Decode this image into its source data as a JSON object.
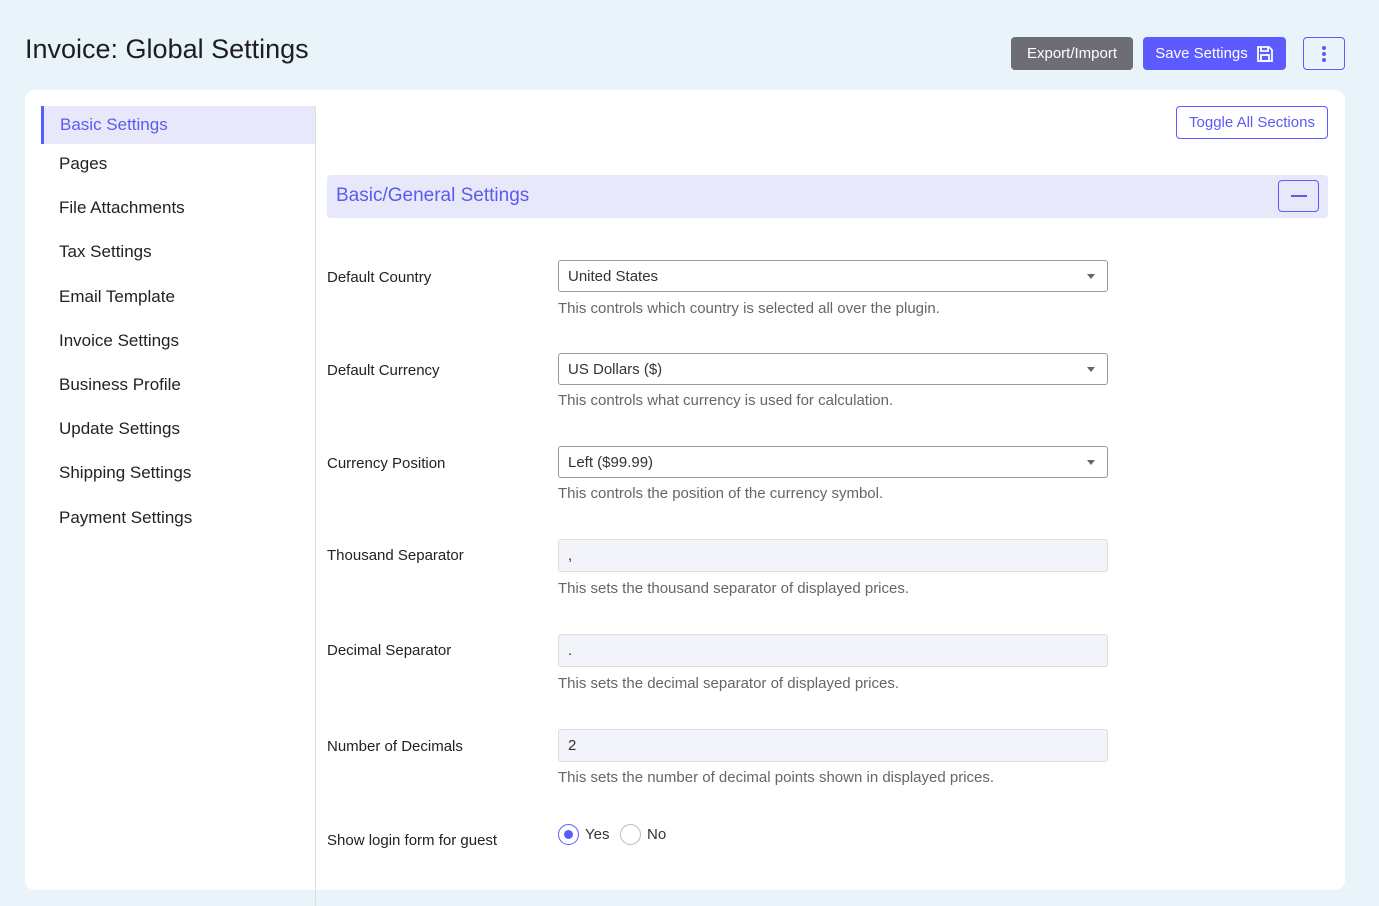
{
  "header": {
    "title": "Invoice: Global Settings",
    "export_label": "Export/Import",
    "save_label": "Save Settings"
  },
  "sidebar": {
    "items": [
      {
        "label": "Basic Settings",
        "active": true
      },
      {
        "label": "Pages"
      },
      {
        "label": "File Attachments"
      },
      {
        "label": "Tax Settings"
      },
      {
        "label": "Email Template"
      },
      {
        "label": "Invoice Settings"
      },
      {
        "label": "Business Profile"
      },
      {
        "label": "Update Settings"
      },
      {
        "label": "Shipping Settings"
      },
      {
        "label": "Payment Settings"
      }
    ]
  },
  "main": {
    "toggle_label": "Toggle All Sections",
    "section_title": "Basic/General Settings",
    "fields": [
      {
        "label": "Default Country",
        "type": "select",
        "value": "United States",
        "help": "This controls which country is selected all over the plugin."
      },
      {
        "label": "Default Currency",
        "type": "select",
        "value": "US Dollars ($)",
        "help": "This controls what currency is used for calculation."
      },
      {
        "label": "Currency Position",
        "type": "select",
        "value": "Left ($99.99)",
        "help": "This controls the position of the currency symbol."
      },
      {
        "label": "Thousand Separator",
        "type": "text",
        "value": ",",
        "help": "This sets the thousand separator of displayed prices."
      },
      {
        "label": "Decimal Separator",
        "type": "text",
        "value": ".",
        "help": "This sets the decimal separator of displayed prices."
      },
      {
        "label": "Number of Decimals",
        "type": "text",
        "value": "2",
        "help": "This sets the number of decimal points shown in displayed prices."
      }
    ],
    "guest_login": {
      "label": "Show login form for guest",
      "options": [
        "Yes",
        "No"
      ],
      "selected": "Yes"
    }
  },
  "colors": {
    "accent": "#5b5bff",
    "background": "#e8f3fa"
  }
}
